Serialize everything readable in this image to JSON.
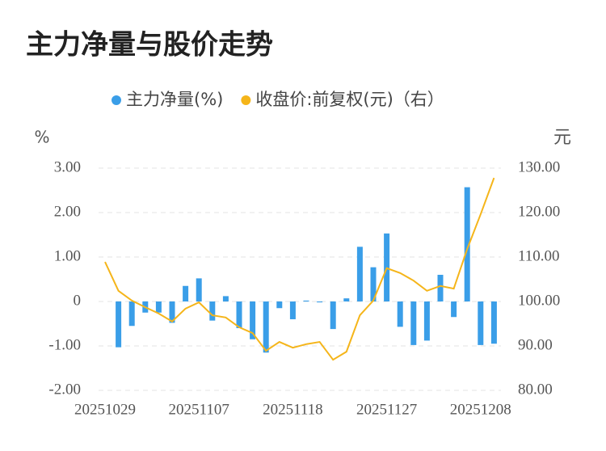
{
  "chart_data": {
    "type": "bar_line",
    "title": "主力净量与股价走势",
    "y_label": "%",
    "y2_label": "元",
    "categories": [
      "20251029",
      null,
      null,
      null,
      null,
      null,
      null,
      "20251107",
      null,
      null,
      null,
      null,
      null,
      null,
      "20251118",
      null,
      null,
      null,
      null,
      null,
      null,
      "20251127",
      null,
      null,
      null,
      null,
      null,
      null,
      "20251208",
      null
    ],
    "series": [
      {
        "name": "主力净量(%)",
        "type": "bar",
        "color": "#3a9ee8",
        "axis": "y",
        "values": [
          0,
          -1.03,
          -0.55,
          -0.25,
          -0.25,
          -0.48,
          0.35,
          0.52,
          -0.43,
          0.12,
          -0.6,
          -0.85,
          -1.15,
          -0.15,
          -0.4,
          0.02,
          -0.02,
          -0.62,
          0.07,
          1.23,
          0.77,
          1.53,
          -0.57,
          -0.98,
          -0.88,
          0.6,
          -0.35,
          2.57,
          -0.98,
          -0.95
        ]
      },
      {
        "name": "收盘价:前复权(元)（右）",
        "type": "line",
        "color": "#f5b51a",
        "axis": "y2",
        "values": [
          108.9,
          102.4,
          100.2,
          98.7,
          97.3,
          95.5,
          98.4,
          99.8,
          96.9,
          96.4,
          94.2,
          92.9,
          88.9,
          90.9,
          89.6,
          90.4,
          90.9,
          86.9,
          88.7,
          96.9,
          100.2,
          107.5,
          106.4,
          104.7,
          102.4,
          103.5,
          102.9,
          111.8,
          119.6,
          127.8
        ]
      }
    ],
    "ylim": [
      -2,
      3
    ],
    "yticks": [
      {
        "value": -2,
        "label": "-2.00"
      },
      {
        "value": -1,
        "label": "-1.00"
      },
      0,
      {
        "value": 1,
        "label": "1.00"
      },
      {
        "value": 2,
        "label": "2.00"
      },
      {
        "value": 3,
        "label": "3.00"
      }
    ],
    "y2lim": [
      80,
      130
    ],
    "y2ticks": [
      {
        "value": 80,
        "label": "80.00"
      },
      {
        "value": 90,
        "label": "90.00"
      },
      {
        "value": 100,
        "label": "100.00"
      },
      {
        "value": 110,
        "label": "110.00"
      },
      {
        "value": 120,
        "label": "120.00"
      },
      {
        "value": 130,
        "label": "130.00"
      }
    ],
    "grid": true,
    "legend": "top"
  }
}
